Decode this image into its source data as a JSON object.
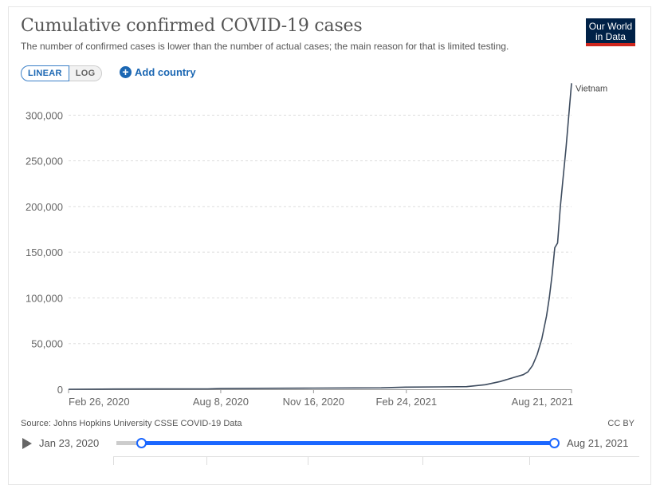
{
  "header": {
    "title": "Cumulative confirmed COVID-19 cases",
    "subtitle": "The number of confirmed cases is lower than the number of actual cases; the main reason for that is limited testing.",
    "logo_line1": "Our World",
    "logo_line2": "in Data"
  },
  "controls": {
    "scale_options": [
      "LINEAR",
      "LOG"
    ],
    "scale_selected": "LINEAR",
    "add_country_label": "Add country"
  },
  "footer": {
    "source": "Source: Johns Hopkins University CSSE COVID-19 Data",
    "license": "CC BY"
  },
  "timeline": {
    "start_label": "Jan 23, 2020",
    "end_label": "Aug 21, 2021"
  },
  "colors": {
    "line": "#3d4b5e",
    "accent": "#1b67b3",
    "grid": "#dddddd"
  },
  "chart_data": {
    "type": "line",
    "title": "Cumulative confirmed COVID-19 cases",
    "ylim": [
      0,
      330000
    ],
    "yticks": [
      0,
      50000,
      100000,
      150000,
      200000,
      250000,
      300000
    ],
    "ytick_labels": [
      "0",
      "50,000",
      "100,000",
      "150,000",
      "200,000",
      "250,000",
      "300,000"
    ],
    "xticks": [
      "2020-02-26",
      "2020-08-08",
      "2020-11-16",
      "2021-02-24",
      "2021-08-21"
    ],
    "xtick_labels": [
      "Feb 26, 2020",
      "Aug 8, 2020",
      "Nov 16, 2020",
      "Feb 24, 2021",
      "Aug 21, 2021"
    ],
    "xlim": [
      "2020-02-26",
      "2021-08-21"
    ],
    "grid": true,
    "series": [
      {
        "name": "Vietnam",
        "x": [
          "2020-02-26",
          "2020-04-15",
          "2020-06-01",
          "2020-07-25",
          "2020-08-08",
          "2020-09-15",
          "2020-11-16",
          "2020-12-31",
          "2021-01-28",
          "2021-02-24",
          "2021-04-01",
          "2021-04-30",
          "2021-05-20",
          "2021-06-05",
          "2021-06-20",
          "2021-06-30",
          "2021-07-05",
          "2021-07-10",
          "2021-07-15",
          "2021-07-20",
          "2021-07-25",
          "2021-07-28",
          "2021-07-31",
          "2021-08-03",
          "2021-08-06",
          "2021-08-09",
          "2021-08-12",
          "2021-08-15",
          "2021-08-18",
          "2021-08-21"
        ],
        "values": [
          16,
          267,
          328,
          420,
          812,
          1060,
          1300,
          1465,
          1600,
          2400,
          2640,
          2900,
          5000,
          8500,
          13000,
          16000,
          19000,
          26000,
          38000,
          55000,
          80000,
          100000,
          125000,
          155000,
          160000,
          200000,
          232000,
          263000,
          299000,
          335000
        ]
      }
    ]
  }
}
